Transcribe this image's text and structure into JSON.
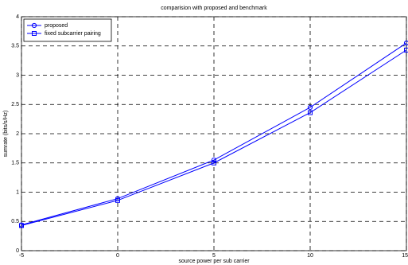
{
  "chart_data": {
    "type": "line",
    "title": "comparision with proposed and benchmark",
    "x_label": "source power per sub carrier",
    "y_label": "sumrate (bits/s/Hz)",
    "x": [
      -5,
      0,
      5,
      10,
      15
    ],
    "series": [
      {
        "name": "proposed",
        "color": "#0000ff",
        "marker": "circle",
        "values": [
          0.44,
          0.89,
          1.55,
          2.45,
          3.55
        ]
      },
      {
        "name": "fixed subcarrier pairing",
        "color": "#0000ff",
        "marker": "square",
        "values": [
          0.43,
          0.86,
          1.5,
          2.36,
          3.43
        ]
      }
    ],
    "xlim": [
      -5,
      15
    ],
    "xticks": [
      -5,
      0,
      5,
      10,
      15
    ],
    "ylim": [
      0,
      4
    ],
    "yticks": [
      0,
      0.5,
      1,
      1.5,
      2,
      2.5,
      3,
      3.5,
      4
    ],
    "grid": true,
    "legend": "upper left"
  }
}
